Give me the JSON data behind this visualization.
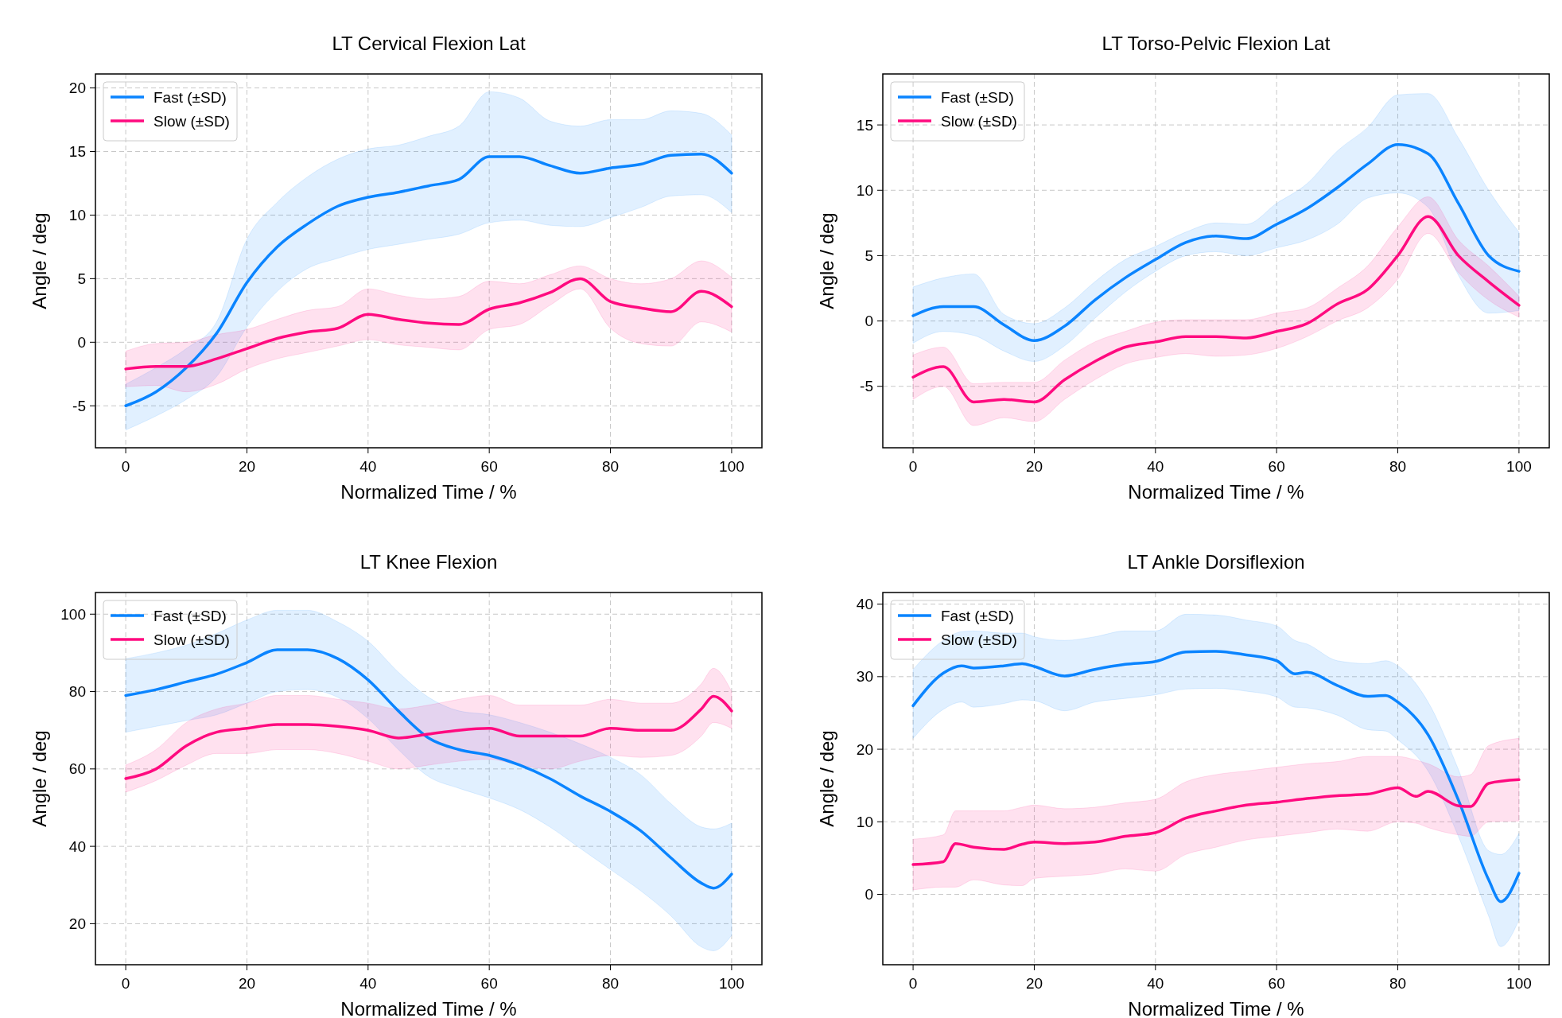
{
  "chart_data": [
    {
      "type": "line",
      "title": "LT Cervical Flexion Lat",
      "xlabel": "Normalized Time / %",
      "ylabel": "Angle / deg",
      "xlim": [
        -5,
        105
      ],
      "xticks": [
        0,
        20,
        40,
        60,
        80,
        100
      ],
      "ylim": [
        -8.3,
        21.1
      ],
      "yticks": [
        -5,
        0,
        5,
        10,
        15,
        20
      ],
      "grid": true,
      "legend": "top left",
      "x": [
        0,
        5,
        10,
        15,
        20,
        25,
        30,
        35,
        40,
        45,
        50,
        55,
        60,
        65,
        70,
        75,
        80,
        85,
        90,
        95,
        100
      ],
      "series": [
        {
          "name": "Fast (±SD)",
          "color": "#0a84ff",
          "values": [
            -5,
            -3.9,
            -2.0,
            0.7,
            4.7,
            7.5,
            9.3,
            10.7,
            11.4,
            11.8,
            12.3,
            12.8,
            14.6,
            14.6,
            13.9,
            13.3,
            13.7,
            14.0,
            14.7,
            14.8,
            13.3
          ],
          "lower": [
            -6.9,
            -5.8,
            -4.5,
            -2.7,
            1.2,
            4.0,
            5.8,
            6.6,
            7.3,
            7.7,
            8.1,
            8.5,
            9.4,
            9.6,
            9.2,
            9.1,
            9.8,
            10.6,
            11.5,
            11.6,
            10.2
          ],
          "upper": [
            -3.3,
            -2.0,
            -0.5,
            1.6,
            8.1,
            11.0,
            13.0,
            14.4,
            15.2,
            15.5,
            16.2,
            17.0,
            19.7,
            19.2,
            17.4,
            17.0,
            17.5,
            17.5,
            18.2,
            18.0,
            16.3
          ]
        },
        {
          "name": "Slow (±SD)",
          "color": "#ff0a7f",
          "values": [
            -2.1,
            -1.9,
            -1.9,
            -1.3,
            -0.5,
            0.3,
            0.8,
            1.1,
            2.2,
            1.8,
            1.5,
            1.4,
            2.6,
            3.1,
            3.9,
            5.0,
            3.2,
            2.7,
            2.4,
            4.0,
            2.8
          ],
          "lower": [
            -3.5,
            -3.4,
            -3.9,
            -3.3,
            -2.1,
            -1.3,
            -0.8,
            -0.3,
            0.2,
            -0.2,
            -0.4,
            -0.6,
            1.0,
            1.4,
            2.9,
            4.2,
            1.1,
            -0.1,
            -0.3,
            1.6,
            0.8
          ],
          "upper": [
            -0.7,
            -0.1,
            0.0,
            0.6,
            1.0,
            1.8,
            2.5,
            2.8,
            4.2,
            3.7,
            3.4,
            3.6,
            4.8,
            4.6,
            5.3,
            6.0,
            5.0,
            4.6,
            5.0,
            6.4,
            5.1
          ]
        }
      ]
    },
    {
      "type": "line",
      "title": "LT Torso-Pelvic Flexion Lat",
      "xlabel": "Normalized Time / %",
      "ylabel": "Angle / deg",
      "xlim": [
        -5,
        105
      ],
      "xticks": [
        0,
        20,
        40,
        60,
        80,
        100
      ],
      "ylim": [
        -9.7,
        18.9
      ],
      "yticks": [
        -5,
        0,
        5,
        10,
        15
      ],
      "grid": true,
      "legend": "top left",
      "x": [
        0,
        5,
        10,
        15,
        20,
        25,
        30,
        35,
        40,
        45,
        50,
        55,
        60,
        65,
        70,
        75,
        80,
        85,
        90,
        95,
        100
      ],
      "series": [
        {
          "name": "Fast (±SD)",
          "color": "#0a84ff",
          "values": [
            0.4,
            1.1,
            1.1,
            -0.3,
            -1.5,
            -0.4,
            1.6,
            3.3,
            4.7,
            6.0,
            6.5,
            6.3,
            7.4,
            8.6,
            10.2,
            12.0,
            13.5,
            12.8,
            9.0,
            5.0,
            3.8
          ],
          "lower": [
            -1.7,
            -0.8,
            -1.1,
            -2.3,
            -3.1,
            -1.9,
            0.2,
            2.2,
            3.8,
            5.0,
            5.3,
            5.0,
            5.6,
            6.2,
            7.4,
            9.4,
            9.8,
            8.7,
            3.5,
            0.6,
            0.8
          ],
          "upper": [
            2.6,
            3.3,
            3.6,
            0.5,
            -0.2,
            1.0,
            3.0,
            4.7,
            5.7,
            6.8,
            7.5,
            7.4,
            9.0,
            10.5,
            13.0,
            14.8,
            17.3,
            17.4,
            14.0,
            10.0,
            6.8
          ]
        },
        {
          "name": "Slow (±SD)",
          "color": "#ff0a7f",
          "values": [
            -4.3,
            -3.5,
            -6.2,
            -6.0,
            -6.2,
            -4.5,
            -3.1,
            -2.0,
            -1.6,
            -1.2,
            -1.2,
            -1.3,
            -0.8,
            -0.2,
            1.3,
            2.4,
            5.0,
            8.0,
            5.0,
            3.0,
            1.2
          ],
          "lower": [
            -6.0,
            -5.0,
            -8.0,
            -7.4,
            -7.7,
            -6.0,
            -4.5,
            -3.3,
            -2.8,
            -2.5,
            -2.7,
            -2.6,
            -2.1,
            -1.2,
            0.0,
            1.0,
            3.2,
            6.7,
            3.7,
            1.6,
            0.3
          ],
          "upper": [
            -2.6,
            -2.0,
            -4.8,
            -4.7,
            -4.7,
            -3.0,
            -1.6,
            -0.8,
            -0.1,
            0.1,
            0.1,
            0.1,
            0.6,
            1.0,
            2.5,
            4.2,
            7.2,
            9.5,
            6.2,
            4.2,
            1.9
          ]
        }
      ]
    },
    {
      "type": "line",
      "title": "LT Knee Flexion",
      "xlabel": "Normalized Time / %",
      "ylabel": "Angle / deg",
      "xlim": [
        -5,
        105
      ],
      "xticks": [
        0,
        20,
        40,
        60,
        80,
        100
      ],
      "ylim": [
        9.4,
        105.6
      ],
      "yticks": [
        20,
        40,
        60,
        80,
        100
      ],
      "grid": true,
      "legend": "top left",
      "series": [
        {
          "name": "Fast (±SD)",
          "color": "#0a84ff",
          "x": [
            0,
            5,
            10,
            15,
            20,
            25,
            30,
            35,
            40,
            45,
            50,
            55,
            60,
            65,
            70,
            75,
            80,
            85,
            90,
            95,
            97,
            100
          ],
          "values": [
            79,
            80.5,
            82.5,
            84.5,
            87.5,
            90.8,
            90.8,
            88.5,
            83,
            75,
            68,
            65,
            63.5,
            61,
            57.5,
            53,
            49,
            44,
            37,
            30.5,
            29.2,
            32.8
          ],
          "lower": [
            69.5,
            71,
            72.5,
            74,
            77,
            80,
            80.5,
            78.5,
            73,
            65,
            58,
            55,
            52.5,
            49.5,
            45,
            39.5,
            34,
            28.5,
            22,
            14,
            13,
            17
          ],
          "upper": [
            88.5,
            90,
            92,
            95,
            98.5,
            101,
            101,
            98,
            93,
            85,
            78.5,
            75,
            74,
            72,
            69.5,
            66.5,
            63,
            58.5,
            51,
            45,
            44.5,
            46
          ]
        },
        {
          "name": "Slow (±SD)",
          "color": "#ff0a7f",
          "x": [
            0,
            5,
            10,
            15,
            20,
            25,
            30,
            35,
            40,
            45,
            50,
            55,
            60,
            65,
            70,
            75,
            80,
            85,
            90,
            95,
            97,
            100
          ],
          "values": [
            57.5,
            60,
            66,
            69.5,
            70.5,
            71.5,
            71.5,
            71,
            70,
            68,
            69,
            70,
            70.5,
            68.5,
            68.5,
            68.5,
            70.5,
            70,
            70,
            75.5,
            78.8,
            75
          ],
          "lower": [
            54,
            57,
            61,
            64,
            64,
            65,
            65,
            64,
            62,
            60,
            61,
            62,
            62.5,
            61,
            60,
            62,
            63.5,
            63,
            63.5,
            68.5,
            72,
            70.5
          ],
          "upper": [
            61,
            65,
            72,
            75.5,
            77,
            79,
            79,
            78,
            77,
            75.5,
            76.5,
            78,
            79,
            76.5,
            76.5,
            76.5,
            78,
            77,
            77,
            82,
            86,
            80
          ]
        }
      ]
    },
    {
      "type": "line",
      "title": "LT Ankle Dorsiflexion",
      "xlabel": "Normalized Time / %",
      "ylabel": "Angle / deg",
      "xlim": [
        -5,
        105
      ],
      "xticks": [
        0,
        20,
        40,
        60,
        80,
        100
      ],
      "ylim": [
        -9.7,
        41.6
      ],
      "yticks": [
        0,
        10,
        20,
        30,
        40
      ],
      "grid": true,
      "legend": "top left",
      "series": [
        {
          "name": "Fast (±SD)",
          "color": "#0a84ff",
          "x": [
            0,
            5,
            8,
            10,
            15,
            18,
            20,
            25,
            30,
            35,
            40,
            45,
            50,
            55,
            60,
            63,
            65,
            70,
            75,
            78,
            80,
            85,
            90,
            95,
            97,
            100
          ],
          "values": [
            26,
            30.5,
            31.5,
            31.2,
            31.5,
            31.8,
            31.4,
            30.1,
            31,
            31.7,
            32.1,
            33.4,
            33.5,
            33.0,
            32.2,
            30.4,
            30.6,
            28.8,
            27.3,
            27.4,
            26.5,
            22,
            13,
            2,
            -1.0,
            2.9
          ],
          "lower": [
            21.5,
            25.5,
            26.5,
            25.8,
            26.3,
            26.8,
            26.7,
            25.3,
            26.5,
            27,
            27.5,
            28.3,
            28.4,
            28,
            27.2,
            25.8,
            25.7,
            24.7,
            22.7,
            22.5,
            21.3,
            17,
            8,
            -3,
            -7.2,
            -3.5
          ],
          "upper": [
            31,
            35,
            36.2,
            36.3,
            36,
            36,
            35.5,
            35,
            35.5,
            36.3,
            36.3,
            38.6,
            38.5,
            37.8,
            37,
            35,
            34.5,
            32.2,
            31.8,
            32.2,
            31.5,
            26.5,
            17.2,
            6,
            5.5,
            8.4
          ]
        },
        {
          "name": "Slow (±SD)",
          "color": "#ff0a7f",
          "x": [
            0,
            5,
            7,
            10,
            15,
            18,
            20,
            25,
            30,
            35,
            40,
            45,
            50,
            55,
            60,
            65,
            70,
            75,
            80,
            83,
            85,
            90,
            92,
            95,
            100
          ],
          "values": [
            4.1,
            4.5,
            7,
            6.5,
            6.2,
            6.9,
            7.2,
            7.0,
            7.2,
            8.0,
            8.5,
            10.5,
            11.5,
            12.3,
            12.7,
            13.2,
            13.6,
            13.8,
            14.7,
            13.5,
            14.2,
            12.2,
            12.1,
            15.3,
            15.8
          ],
          "lower": [
            0.6,
            1.0,
            1.0,
            2,
            1.3,
            1.2,
            2.2,
            2.5,
            2.8,
            3.5,
            3.2,
            5.5,
            6.5,
            7.5,
            8.0,
            8.5,
            9.0,
            8.7,
            10,
            9.8,
            9.2,
            8.2,
            8.0,
            10.0,
            10.1
          ],
          "upper": [
            7.6,
            8.2,
            11.5,
            11.5,
            11.5,
            12.0,
            12.3,
            11.8,
            12.0,
            12.6,
            13.1,
            15.5,
            16.5,
            17.0,
            17.5,
            18.0,
            18.3,
            19.0,
            19.0,
            18.5,
            18.0,
            16.2,
            16.5,
            20.5,
            21.5
          ]
        }
      ]
    }
  ]
}
